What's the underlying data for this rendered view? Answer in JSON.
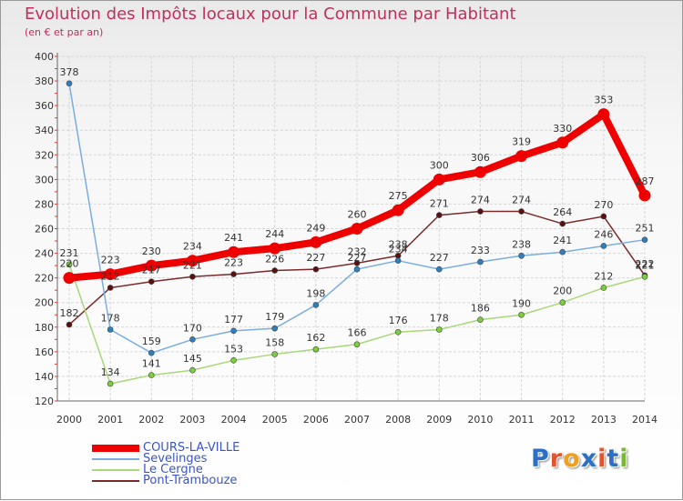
{
  "title": "Evolution des Impôts locaux pour la Commune par Habitant",
  "subtitle": "(en € et par an)",
  "logo": {
    "letters": [
      "P",
      "r",
      "o",
      "x",
      "i",
      "t",
      "i"
    ],
    "colors": [
      "#2b6fc6",
      "#e0542e",
      "#f0a020",
      "#2b6fc6",
      "#e0542e",
      "#2b6fc6",
      "#7ab834"
    ]
  },
  "chart_data": {
    "type": "line",
    "title": "Evolution des Impôts locaux pour la Commune par Habitant",
    "subtitle": "(en € et par an)",
    "x": [
      "2000",
      "2001",
      "2002",
      "2003",
      "2004",
      "2005",
      "2006",
      "2007",
      "2008",
      "2009",
      "2010",
      "2011",
      "2012",
      "2013",
      "2014"
    ],
    "ylim": [
      120,
      400
    ],
    "yticks": [
      120,
      140,
      160,
      180,
      200,
      220,
      240,
      260,
      280,
      300,
      320,
      340,
      360,
      380,
      400
    ],
    "grid": true,
    "legend_position": "bottom-left",
    "series": [
      {
        "name": "COURS-LA-VILLE",
        "color": "#ee0000",
        "point_color": "#ee0000",
        "width": 8,
        "values": [
          220,
          223,
          230,
          234,
          241,
          244,
          249,
          260,
          275,
          300,
          306,
          319,
          330,
          353,
          287
        ],
        "labels": [
          "220",
          "223",
          "230",
          "234",
          "241",
          "244",
          "249",
          "260",
          "275",
          "300",
          "306",
          "319",
          "330",
          "353",
          "287"
        ]
      },
      {
        "name": "Sevelinges",
        "color": "#7aaee0",
        "point_color": "#2f7fbf",
        "width": 1.5,
        "values": [
          378,
          178,
          159,
          170,
          177,
          179,
          198,
          227,
          234,
          227,
          233,
          238,
          241,
          246,
          251
        ],
        "labels": [
          "378",
          "178",
          "159",
          "170",
          "177",
          "179",
          "198",
          "227",
          "234",
          "227",
          "233",
          "238",
          "241",
          "246",
          "251"
        ]
      },
      {
        "name": "Le Cergne",
        "color": "#a8d878",
        "point_color": "#7ccf3c",
        "width": 1.5,
        "values": [
          231,
          134,
          141,
          145,
          153,
          158,
          162,
          166,
          176,
          178,
          186,
          190,
          200,
          212,
          221
        ],
        "labels": [
          "231",
          "134",
          "141",
          "145",
          "153",
          "158",
          "162",
          "166",
          "176",
          "178",
          "186",
          "190",
          "200",
          "212",
          "221"
        ]
      },
      {
        "name": "Pont-Trambouze",
        "color": "#7a2a2a",
        "point_color": "#5a1010",
        "width": 1.5,
        "values": [
          182,
          212,
          217,
          221,
          223,
          226,
          227,
          232,
          238,
          271,
          274,
          274,
          264,
          270,
          222
        ],
        "labels": [
          "182",
          "212",
          "217",
          "221",
          "223",
          "226",
          "227",
          "232",
          "238",
          "271",
          "274",
          "274",
          "264",
          "270",
          "222"
        ]
      }
    ]
  }
}
